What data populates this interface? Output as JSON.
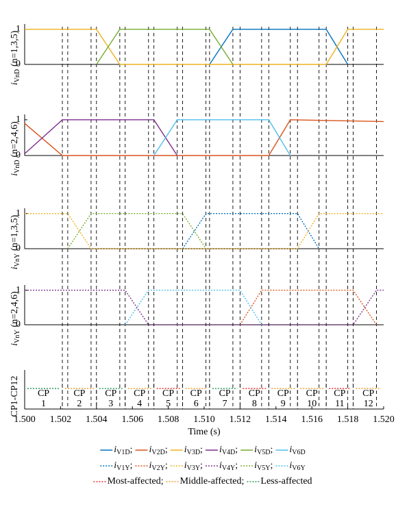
{
  "chart_data": [
    {
      "type": "line",
      "xlim": [
        1.5,
        1.52
      ],
      "ylim": [
        0,
        1.15
      ],
      "yticks": [
        0,
        1
      ],
      "ylabel": {
        "symbol": "i",
        "sub": "VnD",
        "note": "(n=1,3,5)"
      },
      "series": [
        {
          "name": "V1D",
          "color": "#0072bd",
          "style": "solid",
          "x": [
            1.5103,
            1.5116,
            1.5168,
            1.518
          ],
          "values": [
            0,
            1,
            1,
            0
          ]
        },
        {
          "name": "V3D",
          "color": "#edb120",
          "style": "solid",
          "x": [
            1.5,
            1.504,
            1.5053,
            1.5168,
            1.518,
            1.52
          ],
          "values": [
            1,
            1,
            0,
            0,
            1,
            1
          ]
        },
        {
          "name": "V5D",
          "color": "#77ac30",
          "style": "solid",
          "x": [
            1.504,
            1.5053,
            1.5103,
            1.5116
          ],
          "values": [
            0,
            1,
            1,
            0
          ]
        }
      ]
    },
    {
      "type": "line",
      "xlim": [
        1.5,
        1.52
      ],
      "ylim": [
        0,
        1.15
      ],
      "yticks": [
        0,
        1
      ],
      "ylabel": {
        "symbol": "i",
        "sub": "VnD",
        "note": "(n=2,4,6)"
      },
      "series": [
        {
          "name": "V2D",
          "color": "#d95319",
          "style": "solid",
          "x": [
            1.5,
            1.5021,
            1.5136,
            1.5148,
            1.52
          ],
          "values": [
            0.9,
            0,
            0,
            1,
            0.95
          ]
        },
        {
          "name": "V4D",
          "color": "#7e2f8e",
          "style": "solid",
          "x": [
            1.5,
            1.5021,
            1.5072,
            1.5085
          ],
          "values": [
            0.05,
            1,
            1,
            0
          ]
        },
        {
          "name": "V6D",
          "color": "#4dbeee",
          "style": "solid",
          "x": [
            1.5072,
            1.5085,
            1.5136,
            1.5148
          ],
          "values": [
            0,
            1,
            1,
            0
          ]
        }
      ]
    },
    {
      "type": "line",
      "xlim": [
        1.5,
        1.52
      ],
      "ylim": [
        0,
        1.15
      ],
      "yticks": [
        0,
        1
      ],
      "ylabel": {
        "symbol": "i",
        "sub": "VnY",
        "note": "(n=1,3,5)"
      },
      "series": [
        {
          "name": "V1Y",
          "color": "#0072bd",
          "style": "dotted",
          "x": [
            1.5088,
            1.5101,
            1.5152,
            1.5164
          ],
          "values": [
            0,
            1,
            1,
            0
          ]
        },
        {
          "name": "V3Y",
          "color": "#edb120",
          "style": "dotted",
          "x": [
            1.5,
            1.5024,
            1.5037,
            1.5152,
            1.5164,
            1.52
          ],
          "values": [
            1,
            1,
            0,
            0,
            1,
            1
          ]
        },
        {
          "name": "V5Y",
          "color": "#77ac30",
          "style": "dotted",
          "x": [
            1.5024,
            1.5037,
            1.5088,
            1.5101
          ],
          "values": [
            0,
            1,
            1,
            0
          ]
        }
      ]
    },
    {
      "type": "line",
      "xlim": [
        1.5,
        1.52
      ],
      "ylim": [
        0,
        1.15
      ],
      "yticks": [
        0,
        1
      ],
      "ylabel": {
        "symbol": "i",
        "sub": "VnY",
        "note": "(n=2,4,6)"
      },
      "series": [
        {
          "name": "V2Y",
          "color": "#d95319",
          "style": "dotted",
          "x": [
            1.512,
            1.5132,
            1.5183,
            1.5196
          ],
          "values": [
            0,
            1,
            1,
            0
          ]
        },
        {
          "name": "V4Y",
          "color": "#7e2f8e",
          "style": "dotted",
          "x": [
            1.5,
            1.5056,
            1.5069,
            1.5183,
            1.5196,
            1.52
          ],
          "values": [
            1,
            1,
            0,
            0,
            1,
            1
          ]
        },
        {
          "name": "V6Y",
          "color": "#4dbeee",
          "style": "dotted",
          "x": [
            1.5056,
            1.5069,
            1.512,
            1.5132
          ],
          "values": [
            0,
            1,
            1,
            0
          ]
        }
      ]
    },
    {
      "type": "segments",
      "xlim": [
        1.5,
        1.52
      ],
      "xticks": [
        {
          "value": 1.5,
          "label": "1.500"
        },
        {
          "value": 1.502,
          "label": "1.502"
        },
        {
          "value": 1.504,
          "label": "1.504"
        },
        {
          "value": 1.506,
          "label": "1.506"
        },
        {
          "value": 1.508,
          "label": "1.508"
        },
        {
          "value": 1.51,
          "label": "1.510"
        },
        {
          "value": 1.512,
          "label": "1.512"
        },
        {
          "value": 1.514,
          "label": "1.514"
        },
        {
          "value": 1.516,
          "label": "1.516"
        },
        {
          "value": 1.518,
          "label": "1.518"
        },
        {
          "value": 1.52,
          "label": "1.520"
        }
      ],
      "xlabel": "Time (s)",
      "ylabel": "CP1-CP12",
      "cp_prefix": "CP",
      "categories": [
        "1",
        "2",
        "3",
        "4",
        "5",
        "6",
        "7",
        "8",
        "9",
        "10",
        "11",
        "12"
      ],
      "boundaries": [
        1.5021,
        1.504,
        1.5056,
        1.5072,
        1.5088,
        1.5103,
        1.512,
        1.5136,
        1.5152,
        1.5168,
        1.5183
      ],
      "series": [
        {
          "name": "Most-affected",
          "color": "#e8302a",
          "segments": [
            [
              1.5072,
              1.5088
            ],
            [
              1.512,
              1.5136
            ],
            [
              1.5168,
              1.5183
            ]
          ]
        },
        {
          "name": "Middle-affected",
          "color": "#f0a030",
          "segments": [
            [
              1.5021,
              1.504
            ],
            [
              1.5056,
              1.5072
            ],
            [
              1.5088,
              1.5103
            ],
            [
              1.5136,
              1.5152
            ],
            [
              1.5152,
              1.5168
            ],
            [
              1.5183,
              1.52
            ]
          ]
        },
        {
          "name": "Less-affected",
          "color": "#2a9d5a",
          "segments": [
            [
              1.5,
              1.5021
            ],
            [
              1.504,
              1.5056
            ],
            [
              1.5103,
              1.512
            ]
          ]
        }
      ]
    }
  ],
  "vlines": [
    1.5021,
    1.5024,
    1.5037,
    1.504,
    1.5053,
    1.5056,
    1.5069,
    1.5072,
    1.5085,
    1.5088,
    1.5101,
    1.5103,
    1.5116,
    1.512,
    1.5132,
    1.5136,
    1.5148,
    1.5152,
    1.5164,
    1.5168,
    1.518,
    1.5183,
    1.5196
  ],
  "legend": {
    "symbol": "i",
    "separator": ";"
  }
}
